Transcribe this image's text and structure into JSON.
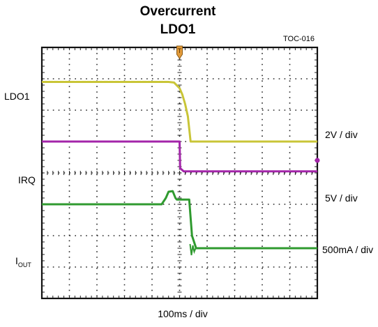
{
  "title_line1": "Overcurrent",
  "title_line2": "LDO1",
  "figure_tag": "TOC-016",
  "trigger_marker": "T",
  "chart_data": {
    "type": "line",
    "divisions": {
      "x": 10,
      "y": 8
    },
    "xlabel": "100ms / div",
    "grid": true,
    "trigger_time_div": 5,
    "series": [
      {
        "name": "LDO1",
        "scale": "2V / div",
        "color": "#c9c537",
        "x": [
          0,
          4.6,
          4.8,
          5.0,
          5.1,
          5.2,
          5.3,
          5.4,
          10
        ],
        "y": [
          6.9,
          6.9,
          6.88,
          6.7,
          6.5,
          6.2,
          5.8,
          5.0,
          5.0
        ]
      },
      {
        "name": "IRQ",
        "scale": "5V / div",
        "color": "#a325a9",
        "x": [
          0,
          5.0,
          5.02,
          5.15,
          10
        ],
        "y": [
          5.0,
          5.0,
          4.15,
          4.05,
          4.05
        ]
      },
      {
        "name": "IOUT",
        "name_main": "I",
        "name_sub": "OUT",
        "scale": "500mA / div",
        "color": "#2f9a2f",
        "x": [
          0,
          4.35,
          4.5,
          4.6,
          4.75,
          4.85,
          4.9,
          5.1,
          5.35,
          5.45,
          5.6,
          10
        ],
        "y": [
          3.0,
          3.0,
          3.2,
          3.4,
          3.42,
          3.2,
          3.15,
          3.15,
          3.15,
          2.0,
          1.6,
          1.6
        ]
      }
    ]
  }
}
